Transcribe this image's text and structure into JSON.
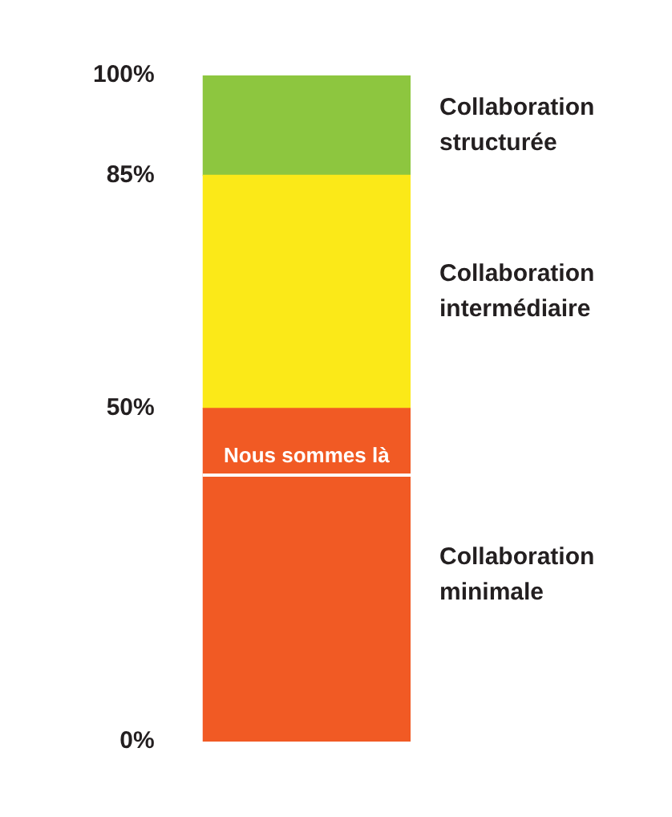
{
  "chart_data": {
    "type": "bar",
    "stacked": true,
    "categories": [
      null
    ],
    "series": [
      {
        "name": "Collaboration minimale",
        "color": "#f15a24",
        "values": [
          50
        ]
      },
      {
        "name": "Collaboration intermédiaire",
        "color": "#fbe918",
        "values": [
          35
        ]
      },
      {
        "name": "Collaboration structurée",
        "color": "#8dc63f",
        "values": [
          15
        ]
      }
    ],
    "ylim": [
      0,
      100
    ],
    "yticks": [
      {
        "value": 0,
        "label": "0%"
      },
      {
        "value": 50,
        "label": "50%"
      },
      {
        "value": 85,
        "label": "85%"
      },
      {
        "value": 100,
        "label": "100%"
      }
    ],
    "ref_lines": [
      {
        "axis": "y",
        "value": 40,
        "label": "Nous sommes là",
        "color": "#ffffff"
      }
    ],
    "grid": false,
    "legend": false
  }
}
